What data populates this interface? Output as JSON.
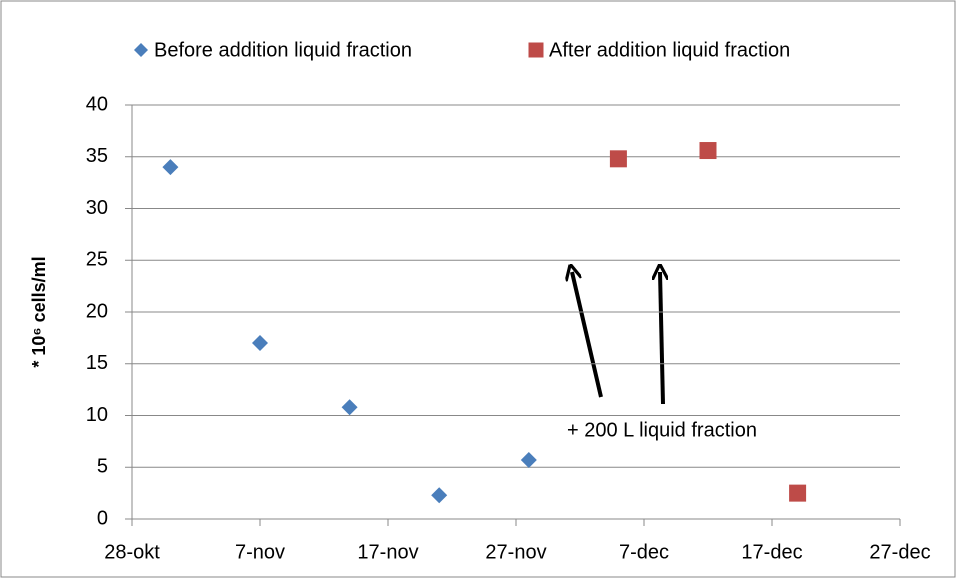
{
  "chart_data": {
    "type": "scatter",
    "ylabel": "* 10⁶ cells/ml",
    "annotation": "+ 200 L liquid fraction",
    "series": [
      {
        "name": "Before addition liquid fraction",
        "color": "#4a7ebb",
        "marker": "diamond",
        "x": [
          304,
          311,
          318,
          325,
          332
        ],
        "values": [
          34,
          17,
          10.8,
          2.3,
          5.7
        ]
      },
      {
        "name": "After addition liquid fraction",
        "color": "#be4b48",
        "marker": "square",
        "x": [
          339,
          346,
          353
        ],
        "values": [
          34.8,
          35.6,
          2.5
        ]
      }
    ],
    "xlim": [
      301,
      361
    ],
    "xticks": [
      {
        "value": 301,
        "label": "28-okt"
      },
      {
        "value": 311,
        "label": "7-nov"
      },
      {
        "value": 321,
        "label": "17-nov"
      },
      {
        "value": 331,
        "label": "27-nov"
      },
      {
        "value": 341,
        "label": "7-dec"
      },
      {
        "value": 351,
        "label": "17-dec"
      },
      {
        "value": 361,
        "label": "27-dec"
      }
    ],
    "ylim": [
      0,
      40
    ],
    "yticks": [
      0,
      5,
      10,
      15,
      20,
      25,
      30,
      35,
      40
    ],
    "grid": true,
    "legend": "top"
  }
}
